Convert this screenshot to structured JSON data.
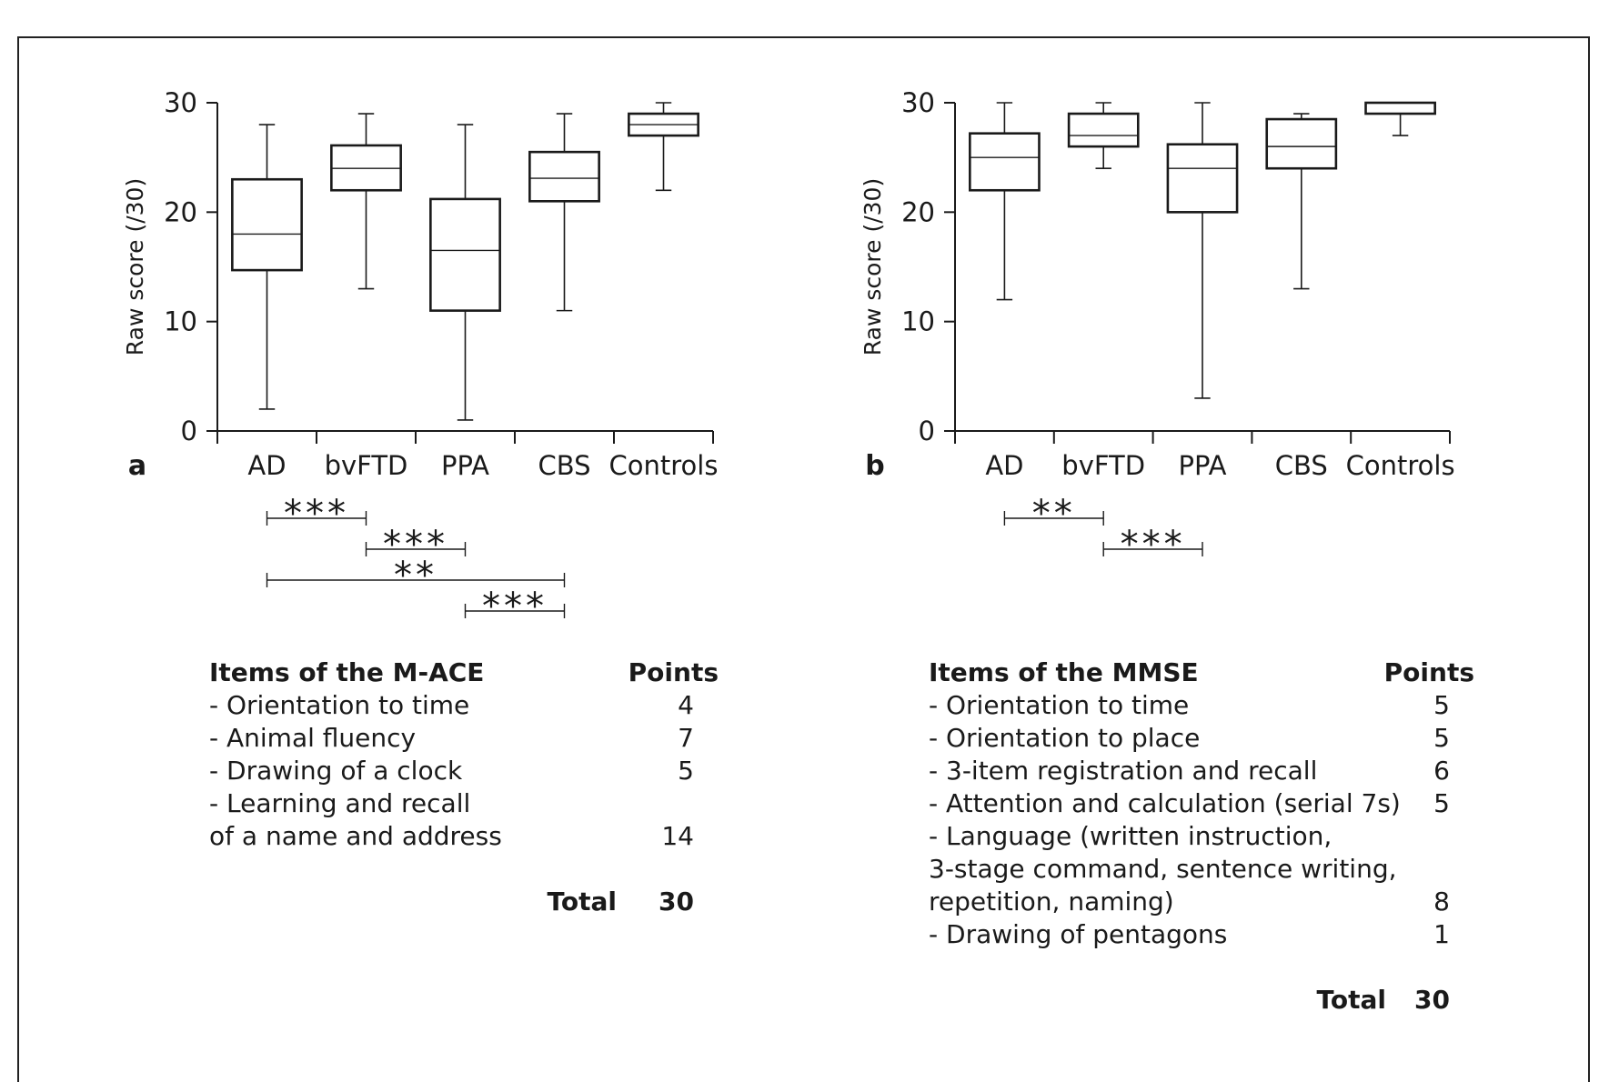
{
  "chart_data": [
    {
      "type": "boxplot",
      "panel_label": "a",
      "ylabel": "Raw score (/30)",
      "ylim": [
        0,
        30
      ],
      "yticks": [
        "0",
        "10",
        "20",
        "30"
      ],
      "categories": [
        "AD",
        "bvFTD",
        "PPA",
        "CBS",
        "Controls"
      ],
      "boxes": [
        {
          "category": "AD",
          "min": 2,
          "q1": 14.7,
          "median": 18,
          "q3": 23,
          "max": 28
        },
        {
          "category": "bvFTD",
          "min": 13,
          "q1": 22,
          "median": 24,
          "q3": 26.1,
          "max": 29
        },
        {
          "category": "PPA",
          "min": 1,
          "q1": 11,
          "median": 16.5,
          "q3": 21.2,
          "max": 28
        },
        {
          "category": "CBS",
          "min": 11,
          "q1": 21,
          "median": 23.1,
          "q3": 25.5,
          "max": 29
        },
        {
          "category": "Controls",
          "min": 22,
          "q1": 27,
          "median": 28,
          "q3": 29,
          "max": 30
        }
      ],
      "comparisons": [
        {
          "from": "AD",
          "to": "bvFTD",
          "label": "***"
        },
        {
          "from": "bvFTD",
          "to": "PPA",
          "label": "***"
        },
        {
          "from": "AD",
          "to": "CBS",
          "label": "**"
        },
        {
          "from": "PPA",
          "to": "CBS",
          "label": "***"
        }
      ],
      "grid": false,
      "legend": "none"
    },
    {
      "type": "boxplot",
      "panel_label": "b",
      "ylabel": "Raw score (/30)",
      "ylim": [
        0,
        30
      ],
      "yticks": [
        "0",
        "10",
        "20",
        "30"
      ],
      "categories": [
        "AD",
        "bvFTD",
        "PPA",
        "CBS",
        "Controls"
      ],
      "boxes": [
        {
          "category": "AD",
          "min": 12,
          "q1": 22,
          "median": 25,
          "q3": 27.2,
          "max": 30
        },
        {
          "category": "bvFTD",
          "min": 24,
          "q1": 26,
          "median": 27,
          "q3": 29,
          "max": 30
        },
        {
          "category": "PPA",
          "min": 3,
          "q1": 20,
          "median": 24,
          "q3": 26.2,
          "max": 30
        },
        {
          "category": "CBS",
          "min": 13,
          "q1": 24,
          "median": 26,
          "q3": 28.5,
          "max": 29
        },
        {
          "category": "Controls",
          "min": 27,
          "q1": 29,
          "median": 30,
          "q3": 30,
          "max": 30
        }
      ],
      "comparisons": [
        {
          "from": "AD",
          "to": "bvFTD",
          "label": "**"
        },
        {
          "from": "bvFTD",
          "to": "PPA",
          "label": "***"
        }
      ],
      "grid": false,
      "legend": "none"
    }
  ],
  "tables": {
    "mace": {
      "heading": "Items of the M-ACE",
      "points_heading": "Points",
      "rows": [
        {
          "item": "- Orientation to time",
          "points": "4"
        },
        {
          "item": "- Animal fluency",
          "points": "7"
        },
        {
          "item": "- Drawing of a clock",
          "points": "5"
        },
        {
          "item": "- Learning and recall",
          "points": ""
        },
        {
          "item": "of a name and address",
          "points": "14"
        }
      ],
      "total_label": "Total",
      "total_value": "30"
    },
    "mmse": {
      "heading": "Items of the MMSE",
      "points_heading": "Points",
      "rows": [
        {
          "item": "- Orientation to time",
          "points": "5"
        },
        {
          "item": "- Orientation to place",
          "points": "5"
        },
        {
          "item": "- 3-item registration and recall",
          "points": "6"
        },
        {
          "item": "- Attention and calculation (serial 7s)",
          "points": "5"
        },
        {
          "item": "- Language (written instruction,",
          "points": ""
        },
        {
          "item": "3-stage command, sentence writing,",
          "points": ""
        },
        {
          "item": "repetition, naming)",
          "points": "8"
        },
        {
          "item": "- Drawing of pentagons",
          "points": "1"
        }
      ],
      "total_label": "Total",
      "total_value": "30"
    }
  }
}
